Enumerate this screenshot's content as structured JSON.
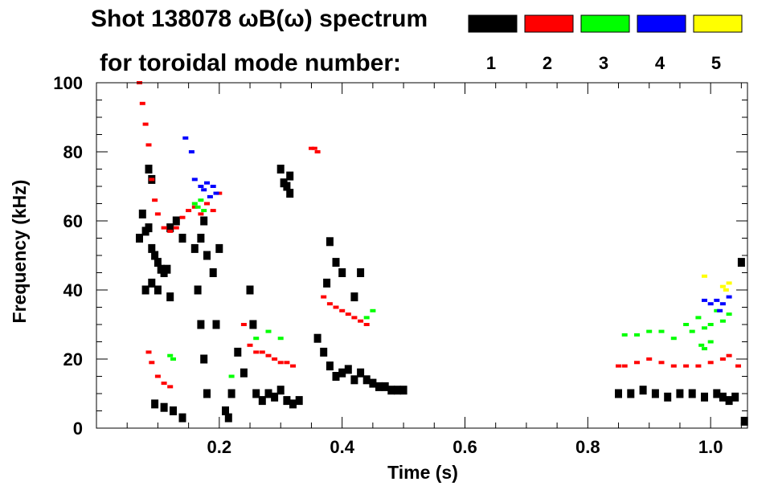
{
  "chart_data": {
    "type": "spectrogram",
    "title_line1": "Shot 138078 ωB(ω) spectrum",
    "title_line2": "for toroidal mode number:",
    "xlabel": "Time (s)",
    "ylabel": "Frequency (kHz)",
    "xlim": [
      0.0,
      1.06
    ],
    "ylim": [
      0,
      100
    ],
    "x_major_ticks": [
      0.2,
      0.4,
      0.6,
      0.8,
      1.0
    ],
    "x_tick_labels": [
      "0.2",
      "0.4",
      "0.6",
      "0.8",
      "1.0"
    ],
    "x_minor_step": 0.05,
    "y_major_ticks": [
      0,
      20,
      40,
      60,
      80,
      100
    ],
    "y_tick_labels": [
      "0",
      "20",
      "40",
      "60",
      "80",
      "100"
    ],
    "y_minor_step": 5,
    "legend": [
      {
        "mode": "1",
        "color": "#000000"
      },
      {
        "mode": "2",
        "color": "#ff0000"
      },
      {
        "mode": "3",
        "color": "#00ff00"
      },
      {
        "mode": "4",
        "color": "#0000ff"
      },
      {
        "mode": "5",
        "color": "#ffff00"
      }
    ],
    "series": [
      {
        "mode": "1",
        "name": "n=1 (black)",
        "color": "#000000",
        "points": [
          [
            0.07,
            55
          ],
          [
            0.075,
            62
          ],
          [
            0.08,
            57
          ],
          [
            0.085,
            58
          ],
          [
            0.09,
            52
          ],
          [
            0.095,
            50
          ],
          [
            0.1,
            48
          ],
          [
            0.105,
            46
          ],
          [
            0.11,
            45
          ],
          [
            0.115,
            46
          ],
          [
            0.12,
            58
          ],
          [
            0.13,
            60
          ],
          [
            0.14,
            55
          ],
          [
            0.08,
            40
          ],
          [
            0.09,
            42
          ],
          [
            0.1,
            40
          ],
          [
            0.12,
            38
          ],
          [
            0.085,
            75
          ],
          [
            0.09,
            72
          ],
          [
            0.095,
            7
          ],
          [
            0.11,
            6
          ],
          [
            0.125,
            5
          ],
          [
            0.14,
            3
          ],
          [
            0.16,
            52
          ],
          [
            0.17,
            55
          ],
          [
            0.175,
            60
          ],
          [
            0.18,
            50
          ],
          [
            0.19,
            45
          ],
          [
            0.165,
            40
          ],
          [
            0.17,
            30
          ],
          [
            0.175,
            20
          ],
          [
            0.18,
            10
          ],
          [
            0.195,
            30
          ],
          [
            0.2,
            52
          ],
          [
            0.21,
            5
          ],
          [
            0.215,
            3
          ],
          [
            0.22,
            10
          ],
          [
            0.23,
            22
          ],
          [
            0.24,
            16
          ],
          [
            0.26,
            10
          ],
          [
            0.27,
            8
          ],
          [
            0.28,
            10
          ],
          [
            0.29,
            9
          ],
          [
            0.3,
            11
          ],
          [
            0.31,
            8
          ],
          [
            0.32,
            7
          ],
          [
            0.33,
            8
          ],
          [
            0.25,
            40
          ],
          [
            0.255,
            30
          ],
          [
            0.3,
            75
          ],
          [
            0.305,
            71
          ],
          [
            0.31,
            70
          ],
          [
            0.315,
            73
          ],
          [
            0.315,
            68
          ],
          [
            0.36,
            26
          ],
          [
            0.37,
            22
          ],
          [
            0.38,
            18
          ],
          [
            0.39,
            15
          ],
          [
            0.4,
            16
          ],
          [
            0.41,
            17
          ],
          [
            0.42,
            14
          ],
          [
            0.43,
            16
          ],
          [
            0.44,
            14
          ],
          [
            0.45,
            13
          ],
          [
            0.46,
            12
          ],
          [
            0.47,
            12
          ],
          [
            0.48,
            11
          ],
          [
            0.49,
            11
          ],
          [
            0.5,
            11
          ],
          [
            0.375,
            42
          ],
          [
            0.38,
            54
          ],
          [
            0.39,
            48
          ],
          [
            0.4,
            45
          ],
          [
            0.42,
            38
          ],
          [
            0.43,
            45
          ],
          [
            0.85,
            10
          ],
          [
            0.87,
            10
          ],
          [
            0.89,
            11
          ],
          [
            0.91,
            10
          ],
          [
            0.93,
            9
          ],
          [
            0.95,
            10
          ],
          [
            0.97,
            10
          ],
          [
            0.99,
            9
          ],
          [
            1.01,
            10
          ],
          [
            1.02,
            9
          ],
          [
            1.03,
            8
          ],
          [
            1.04,
            9
          ],
          [
            1.05,
            48
          ],
          [
            1.055,
            2
          ]
        ]
      },
      {
        "mode": "2",
        "name": "n=2 (red)",
        "color": "#ff0000",
        "points": [
          [
            0.07,
            100
          ],
          [
            0.075,
            94
          ],
          [
            0.08,
            88
          ],
          [
            0.085,
            82
          ],
          [
            0.09,
            72
          ],
          [
            0.095,
            66
          ],
          [
            0.1,
            62
          ],
          [
            0.11,
            58
          ],
          [
            0.12,
            57
          ],
          [
            0.13,
            58
          ],
          [
            0.14,
            61
          ],
          [
            0.15,
            63
          ],
          [
            0.16,
            64
          ],
          [
            0.17,
            62
          ],
          [
            0.18,
            65
          ],
          [
            0.19,
            63
          ],
          [
            0.2,
            68
          ],
          [
            0.085,
            22
          ],
          [
            0.09,
            19
          ],
          [
            0.1,
            15
          ],
          [
            0.11,
            13
          ],
          [
            0.12,
            12
          ],
          [
            0.24,
            30
          ],
          [
            0.25,
            24
          ],
          [
            0.26,
            22
          ],
          [
            0.27,
            22
          ],
          [
            0.28,
            21
          ],
          [
            0.29,
            20
          ],
          [
            0.3,
            19
          ],
          [
            0.31,
            19
          ],
          [
            0.32,
            18
          ],
          [
            0.35,
            81
          ],
          [
            0.355,
            81
          ],
          [
            0.36,
            80
          ],
          [
            0.37,
            38
          ],
          [
            0.38,
            36
          ],
          [
            0.39,
            35
          ],
          [
            0.4,
            34
          ],
          [
            0.41,
            33
          ],
          [
            0.42,
            32
          ],
          [
            0.43,
            31
          ],
          [
            0.44,
            30
          ],
          [
            0.85,
            18
          ],
          [
            0.86,
            18
          ],
          [
            0.88,
            19
          ],
          [
            0.9,
            20
          ],
          [
            0.92,
            19
          ],
          [
            0.94,
            18
          ],
          [
            0.96,
            18
          ],
          [
            0.98,
            18
          ],
          [
            1.0,
            19
          ],
          [
            1.02,
            20
          ],
          [
            1.03,
            21
          ],
          [
            1.045,
            18
          ]
        ]
      },
      {
        "mode": "3",
        "name": "n=3 (green)",
        "color": "#00ff00",
        "points": [
          [
            0.16,
            65
          ],
          [
            0.165,
            64
          ],
          [
            0.17,
            66
          ],
          [
            0.175,
            63
          ],
          [
            0.12,
            21
          ],
          [
            0.125,
            20
          ],
          [
            0.22,
            15
          ],
          [
            0.26,
            26
          ],
          [
            0.28,
            28
          ],
          [
            0.3,
            26
          ],
          [
            0.44,
            32
          ],
          [
            0.45,
            34
          ],
          [
            0.86,
            27
          ],
          [
            0.88,
            27
          ],
          [
            0.9,
            28
          ],
          [
            0.92,
            28
          ],
          [
            0.94,
            26
          ],
          [
            0.96,
            30
          ],
          [
            0.97,
            28
          ],
          [
            0.98,
            32
          ],
          [
            0.99,
            29
          ],
          [
            1.0,
            30
          ],
          [
            1.01,
            34
          ],
          [
            1.02,
            31
          ],
          [
            1.03,
            33
          ],
          [
            0.985,
            24
          ],
          [
            0.99,
            23
          ],
          [
            1.0,
            25
          ]
        ]
      },
      {
        "mode": "4",
        "name": "n=4 (blue)",
        "color": "#0000ff",
        "points": [
          [
            0.17,
            70
          ],
          [
            0.175,
            69
          ],
          [
            0.18,
            71
          ],
          [
            0.185,
            67
          ],
          [
            0.19,
            70
          ],
          [
            0.195,
            68
          ],
          [
            0.145,
            84
          ],
          [
            0.155,
            80
          ],
          [
            0.16,
            72
          ],
          [
            0.99,
            37
          ],
          [
            1.0,
            36
          ],
          [
            1.01,
            37
          ],
          [
            1.015,
            34
          ],
          [
            1.02,
            36
          ],
          [
            1.03,
            38
          ]
        ]
      },
      {
        "mode": "5",
        "name": "n=5 (yellow)",
        "color": "#ffff00",
        "points": [
          [
            0.99,
            44
          ],
          [
            1.02,
            41
          ],
          [
            1.025,
            40
          ],
          [
            1.03,
            42
          ]
        ]
      }
    ]
  }
}
